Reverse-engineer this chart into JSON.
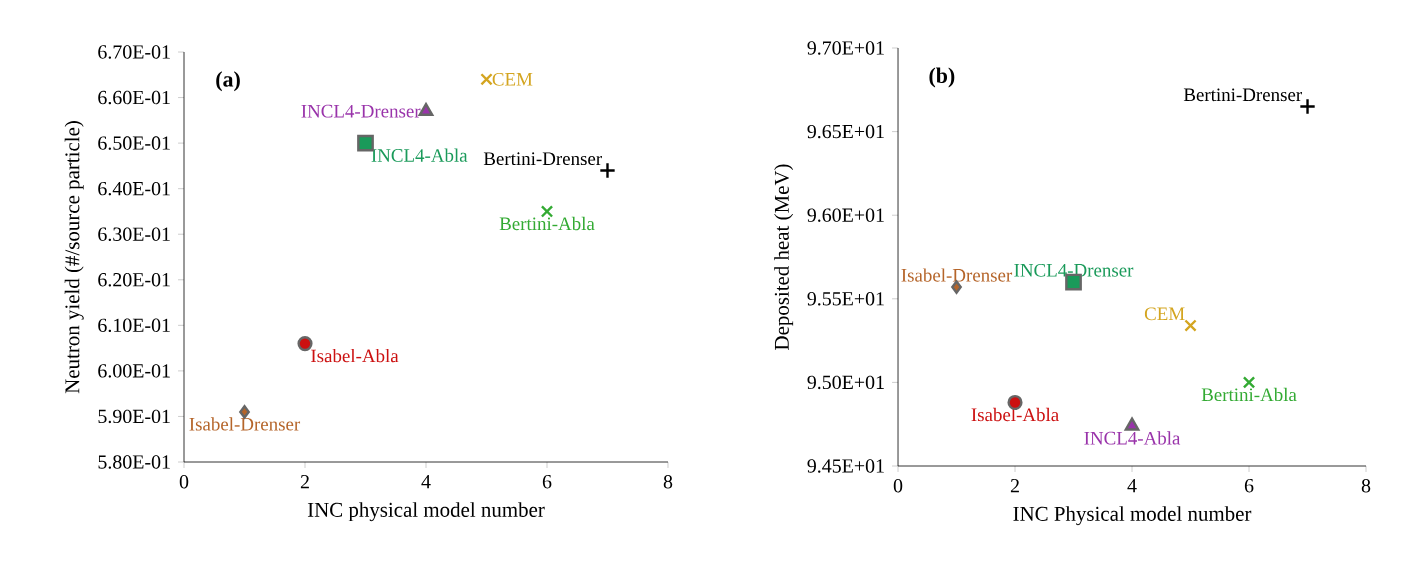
{
  "chart_data": [
    {
      "type": "scatter",
      "title": "(a)",
      "xlabel": "INC physical model number",
      "ylabel": "Neutron yield  (#/source particle)",
      "xlim": [
        0,
        8
      ],
      "xticks": [
        0,
        2,
        4,
        6,
        8
      ],
      "ylim": [
        0.58,
        0.67
      ],
      "yticks": [
        {
          "value": 0.58,
          "label": "5.80E-01"
        },
        {
          "value": 0.59,
          "label": "5.90E-01"
        },
        {
          "value": 0.6,
          "label": "6.00E-01"
        },
        {
          "value": 0.61,
          "label": "6.10E-01"
        },
        {
          "value": 0.62,
          "label": "6.20E-01"
        },
        {
          "value": 0.63,
          "label": "6.30E-01"
        },
        {
          "value": 0.64,
          "label": "6.40E-01"
        },
        {
          "value": 0.65,
          "label": "6.50E-01"
        },
        {
          "value": 0.66,
          "label": "6.60E-01"
        },
        {
          "value": 0.67,
          "label": "6.70E-01"
        }
      ],
      "grid": false,
      "legend": false,
      "series": [
        {
          "name": "Isabel-Drenser",
          "color": "#b5652a",
          "marker": "diamond",
          "x": [
            1
          ],
          "values": [
            0.591
          ]
        },
        {
          "name": "Isabel-Abla",
          "color": "#cc1111",
          "marker": "circle",
          "x": [
            2
          ],
          "values": [
            0.606
          ]
        },
        {
          "name": "INCL4-Abla",
          "color": "#1a9a5a",
          "marker": "square",
          "x": [
            3
          ],
          "values": [
            0.65
          ]
        },
        {
          "name": "INCL4-Drenser",
          "color": "#9933aa",
          "marker": "triangle",
          "x": [
            4
          ],
          "values": [
            0.657
          ]
        },
        {
          "name": "CEM",
          "color": "#d4a520",
          "marker": "cross",
          "x": [
            5
          ],
          "values": [
            0.664
          ]
        },
        {
          "name": "Bertini-Abla",
          "color": "#33aa33",
          "marker": "cross",
          "x": [
            6
          ],
          "values": [
            0.635
          ]
        },
        {
          "name": "Bertini-Drenser",
          "color": "#000000",
          "marker": "plus",
          "x": [
            7
          ],
          "values": [
            0.644
          ]
        }
      ]
    },
    {
      "type": "scatter",
      "title": "(b)",
      "xlabel": "INC Physical  model number",
      "ylabel": "Deposited heat (MeV)",
      "xlim": [
        0,
        8
      ],
      "xticks": [
        0,
        2,
        4,
        6,
        8
      ],
      "ylim": [
        94.5,
        97.0
      ],
      "yticks": [
        {
          "value": 94.5,
          "label": "9.45E+01"
        },
        {
          "value": 95.0,
          "label": "9.50E+01"
        },
        {
          "value": 95.5,
          "label": "9.55E+01"
        },
        {
          "value": 96.0,
          "label": "9.60E+01"
        },
        {
          "value": 96.5,
          "label": "9.65E+01"
        },
        {
          "value": 97.0,
          "label": "9.70E+01"
        }
      ],
      "grid": false,
      "legend": false,
      "series": [
        {
          "name": "Isabel-Drenser",
          "color": "#b5652a",
          "marker": "diamond",
          "x": [
            1
          ],
          "values": [
            95.57
          ]
        },
        {
          "name": "Isabel-Abla",
          "color": "#cc1111",
          "marker": "circle",
          "x": [
            2
          ],
          "values": [
            94.88
          ]
        },
        {
          "name": "INCL4-Drenser",
          "color": "#1a9a5a",
          "marker": "square",
          "x": [
            3
          ],
          "values": [
            95.6
          ]
        },
        {
          "name": "INCL4-Abla",
          "color": "#9933aa",
          "marker": "triangle",
          "x": [
            4
          ],
          "values": [
            94.74
          ]
        },
        {
          "name": "CEM",
          "color": "#d4a520",
          "marker": "cross",
          "x": [
            5
          ],
          "values": [
            95.34
          ]
        },
        {
          "name": "Bertini-Abla",
          "color": "#33aa33",
          "marker": "cross",
          "x": [
            6
          ],
          "values": [
            95.0
          ]
        },
        {
          "name": "Bertini-Drenser",
          "color": "#000000",
          "marker": "plus",
          "x": [
            7
          ],
          "values": [
            96.65
          ]
        }
      ]
    }
  ]
}
